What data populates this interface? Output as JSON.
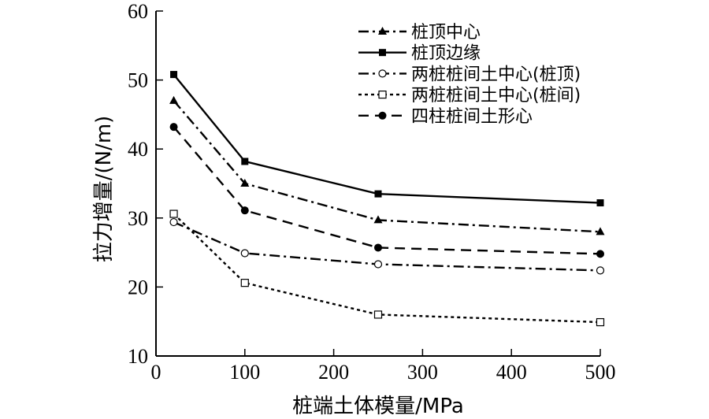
{
  "chart_data": {
    "type": "line",
    "title": "",
    "xlabel": "桩端土体模量/MPa",
    "ylabel": "拉力增量/(N/m)",
    "xlim": [
      0,
      500
    ],
    "ylim": [
      10,
      60
    ],
    "xticks": [
      0,
      100,
      200,
      300,
      400,
      500
    ],
    "yticks": [
      10,
      20,
      30,
      40,
      50,
      60
    ],
    "grid": false,
    "legend_position": "top-right",
    "x": [
      20,
      100,
      250,
      500
    ],
    "series": [
      {
        "name": "桩顶中心",
        "values": [
          47.0,
          35.0,
          29.7,
          28.0
        ],
        "marker": "triangle",
        "line": "dashdot"
      },
      {
        "name": "桩顶边缘",
        "values": [
          50.8,
          38.2,
          33.5,
          32.2
        ],
        "marker": "square-filled",
        "line": "solid"
      },
      {
        "name": "两桩桩间土中心(桩顶)",
        "values": [
          29.4,
          24.9,
          23.3,
          22.4
        ],
        "marker": "circle-open",
        "line": "dashdot"
      },
      {
        "name": "两桩桩间土中心(桩间)",
        "values": [
          30.6,
          20.6,
          16.0,
          14.9
        ],
        "marker": "square-open",
        "line": "dotted"
      },
      {
        "name": "四柱桩间土形心",
        "values": [
          43.2,
          31.1,
          25.7,
          24.8
        ],
        "marker": "circle-filled",
        "line": "dashed"
      }
    ]
  }
}
